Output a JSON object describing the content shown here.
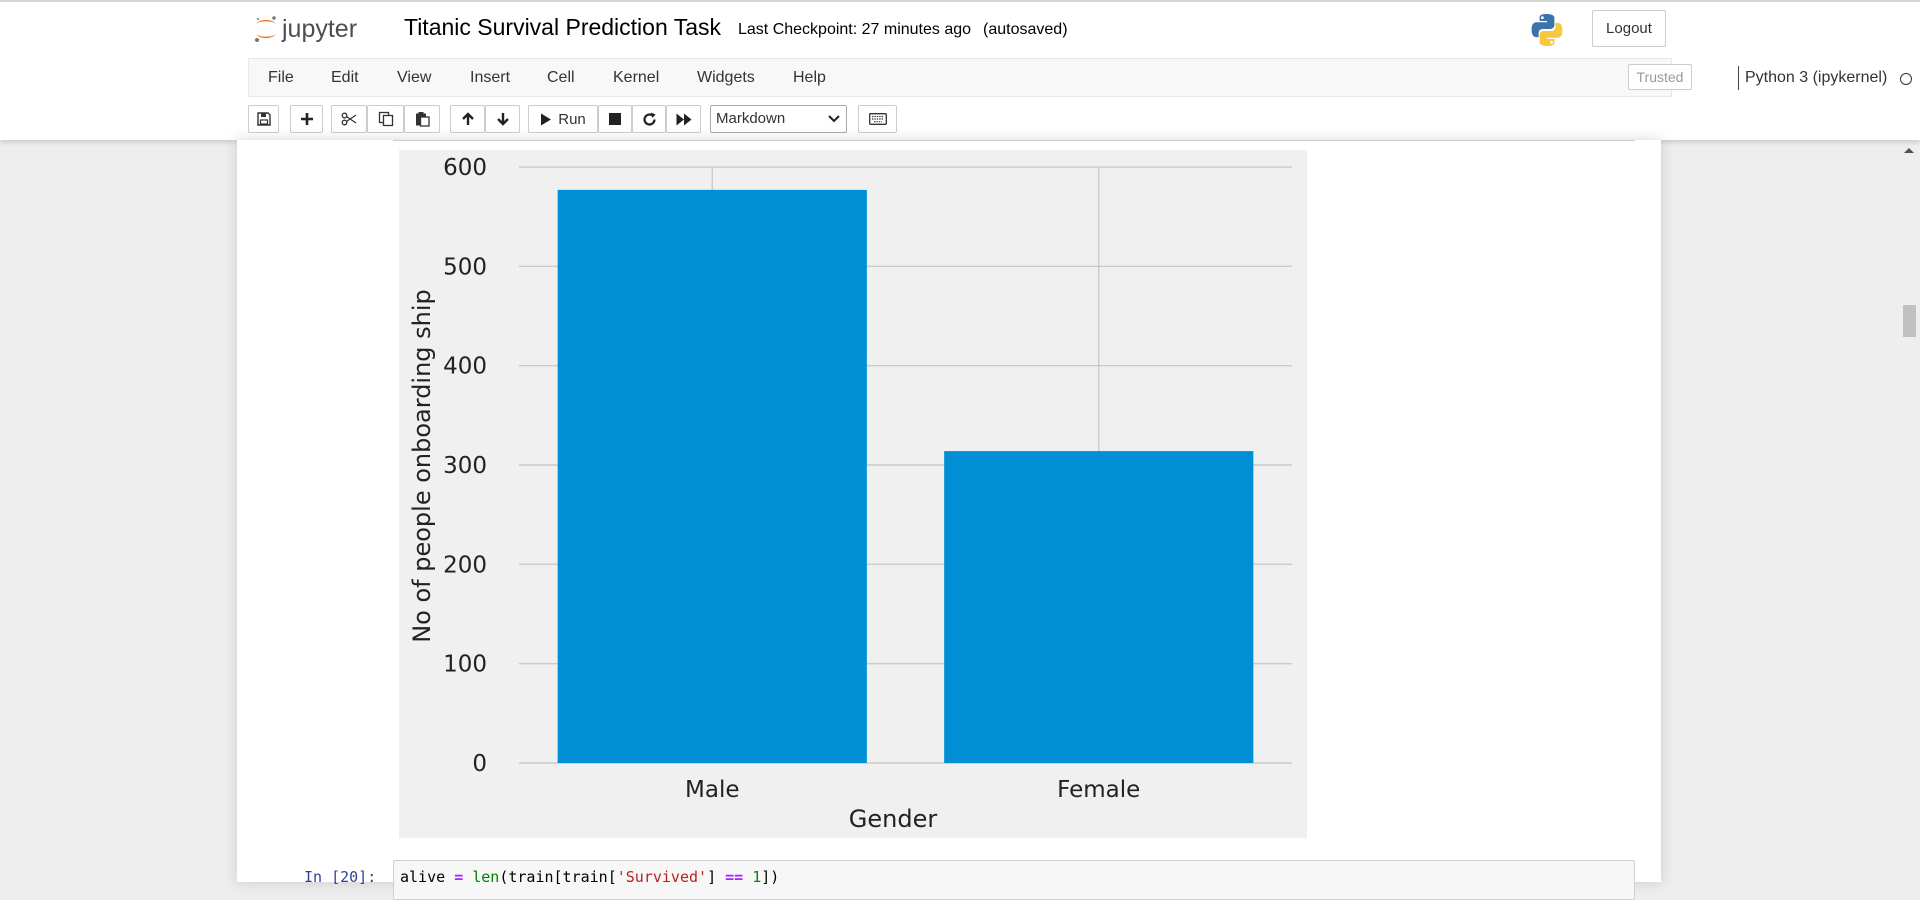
{
  "header": {
    "logo_text": "jupyter",
    "notebook_name": "Titanic Survival Prediction Task",
    "checkpoint_text": "Last Checkpoint: 27 minutes ago",
    "autosave_status": "(autosaved)",
    "logout_label": "Logout"
  },
  "menubar": {
    "items": [
      "File",
      "Edit",
      "View",
      "Insert",
      "Cell",
      "Kernel",
      "Widgets",
      "Help"
    ],
    "trusted_label": "Trusted",
    "kernel_name": "Python 3 (ipykernel)"
  },
  "toolbar": {
    "run_label": "Run",
    "cell_type": "Markdown",
    "buttons": [
      "save-icon",
      "plus-icon",
      "cut-icon",
      "copy-icon",
      "paste-icon",
      "arrow-up-icon",
      "arrow-down-icon",
      "run-icon",
      "stop-icon",
      "restart-icon",
      "fast-forward-icon",
      "keyboard-icon"
    ]
  },
  "chart_data": {
    "type": "bar",
    "categories": [
      "Male",
      "Female"
    ],
    "values": [
      577,
      314
    ],
    "xlabel": "Gender",
    "ylabel": "No of people onboarding ship",
    "ylim": [
      0,
      620
    ],
    "yticks": [
      0,
      100,
      200,
      300,
      400,
      500,
      600
    ],
    "grid": true,
    "bar_color": "#008fd5",
    "background_color": "#f0f0f0"
  },
  "next_cell": {
    "prompt": "In [20]:",
    "code": "alive = len(train[train['Survived'] == 1])"
  },
  "colors": {
    "jupyter_orange": "#f37726",
    "prompt_blue": "#303f9f"
  }
}
